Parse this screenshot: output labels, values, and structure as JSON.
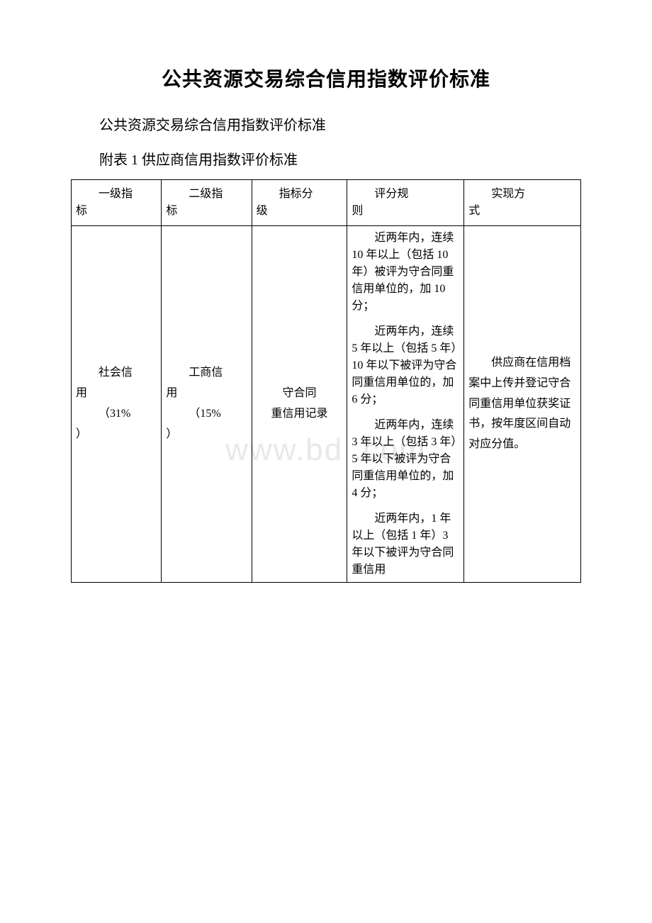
{
  "title": "公共资源交易综合信用指数评价标准",
  "subtitle": "公共资源交易综合信用指数评价标准",
  "attachment_label": "附表 1 供应商信用指数评价标准",
  "watermark": "www.bd     .com",
  "headers": {
    "col1_line1": "一级指",
    "col1_line2": "标",
    "col2_line1": "二级指",
    "col2_line2": "标",
    "col3_line1": "指标分",
    "col3_line2": "级",
    "col4_line1": "评分规",
    "col4_line2": "则",
    "col5_line1": "实现方",
    "col5_line2": "式"
  },
  "row1": {
    "level1_line1": "社会信",
    "level1_line2": "用",
    "level1_line3": "（31%",
    "level1_line4": "）",
    "level2_line1": "工商信",
    "level2_line2": "用",
    "level2_line3": "（15%",
    "level2_line4": "）",
    "level3_line1": "守合同",
    "level3_line2": "重信用记录",
    "rules": {
      "r1": "近两年内，连续 10 年以上（包括 10 年）被评为守合同重信用单位的，加 10 分；",
      "r2": "近两年内，连续 5 年以上（包括 5 年）10 年以下被评为守合同重信用单位的，加 6 分；",
      "r3": "近两年内，连续 3 年以上（包括 3 年）5 年以下被评为守合同重信用单位的，加 4 分；",
      "r4": "近两年内，1 年以上（包括 1 年）3 年以下被评为守合同重信用"
    },
    "method": "供应商在信用档案中上传并登记守合同重信用单位获奖证书，按年度区间自动对应分值。"
  },
  "style": {
    "background_color": "#ffffff",
    "border_color": "#000000",
    "title_fontsize": 28,
    "body_fontsize": 16,
    "watermark_color": "#e8e8e8"
  }
}
